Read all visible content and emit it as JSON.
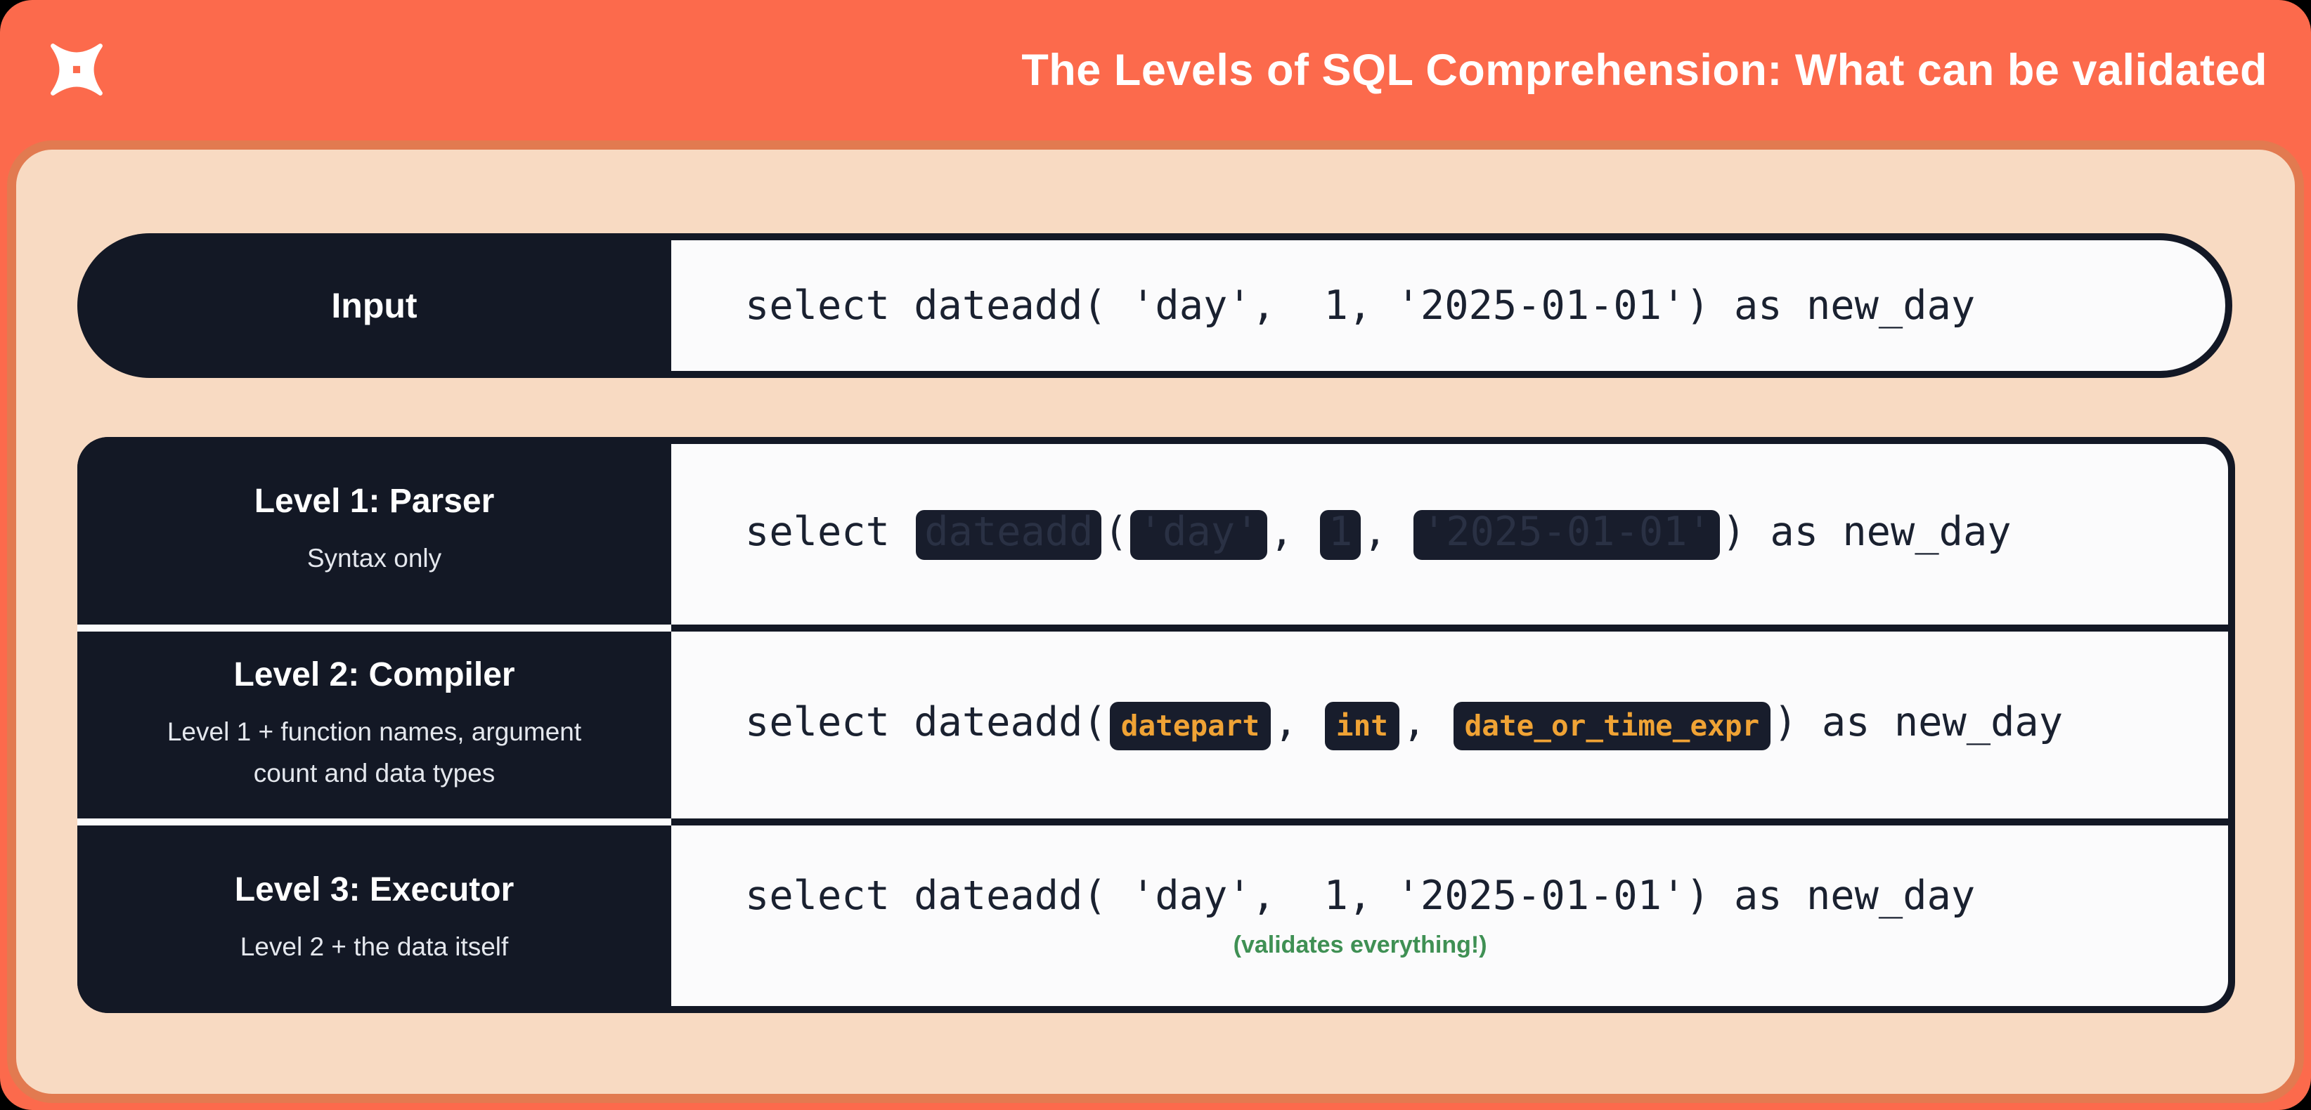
{
  "title": "The Levels of SQL Comprehension: What can be validated",
  "logo": "dbt-logo",
  "colors": {
    "header_orange": "#FC6A4C",
    "card_border_orange": "#E27A50",
    "card_peach": "#F8DAC2",
    "panel_navy": "#131825",
    "code_background": "#FBFBFC",
    "token_orange": "#F0A335",
    "note_green": "#3F9054"
  },
  "input_row": {
    "label": "Input",
    "code": [
      {
        "t": "plain",
        "v": "select dateadd( 'day',  1, '2025-01-01') as new_day"
      }
    ]
  },
  "levels": [
    {
      "title": "Level 1: Parser",
      "subtitle": "Syntax only",
      "code": [
        {
          "t": "plain",
          "v": "select "
        },
        {
          "t": "redacted",
          "v": "dateadd"
        },
        {
          "t": "plain",
          "v": "("
        },
        {
          "t": "redacted",
          "v": "'day'"
        },
        {
          "t": "plain",
          "v": ", "
        },
        {
          "t": "redacted",
          "v": "1"
        },
        {
          "t": "plain",
          "v": ", "
        },
        {
          "t": "redacted",
          "v": "'2025-01-01'"
        },
        {
          "t": "plain",
          "v": ") as new_day"
        }
      ]
    },
    {
      "title": "Level 2: Compiler",
      "subtitle": "Level 1 + function names, argument count and data types",
      "code": [
        {
          "t": "plain",
          "v": "select dateadd("
        },
        {
          "t": "token",
          "v": "datepart"
        },
        {
          "t": "plain",
          "v": ", "
        },
        {
          "t": "token",
          "v": "int"
        },
        {
          "t": "plain",
          "v": ", "
        },
        {
          "t": "token",
          "v": "date_or_time_expr"
        },
        {
          "t": "plain",
          "v": ") as new_day"
        }
      ]
    },
    {
      "title": "Level 3: Executor",
      "subtitle": "Level 2 + the data itself",
      "note": "(validates everything!)",
      "code": [
        {
          "t": "plain",
          "v": "select dateadd( 'day',  1, '2025-01-01') as new_day"
        }
      ]
    }
  ]
}
